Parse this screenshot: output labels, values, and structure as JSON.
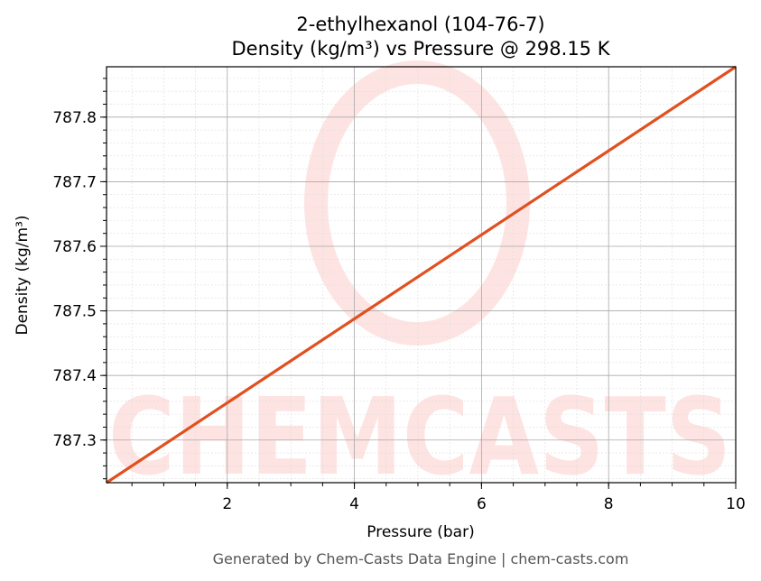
{
  "chart_data": {
    "type": "line",
    "title": "2-ethylhexanol (104-76-7)",
    "subtitle": "Density (kg/m³) vs Pressure @ 298.15 K",
    "xlabel": "Pressure (bar)",
    "ylabel": "Density (kg/m³)",
    "xlim": [
      0.1,
      10
    ],
    "ylim": [
      787.234,
      787.878
    ],
    "xticks": [
      2,
      4,
      6,
      8,
      10
    ],
    "xtick_labels": [
      "2",
      "4",
      "6",
      "8",
      "10"
    ],
    "yticks": [
      787.3,
      787.4,
      787.5,
      787.6,
      787.7,
      787.8
    ],
    "ytick_labels": [
      "787.3",
      "787.4",
      "787.5",
      "787.6",
      "787.7",
      "787.8"
    ],
    "grid": true,
    "series": [
      {
        "x": [
          0.1,
          10
        ],
        "y": [
          787.234,
          787.878
        ],
        "color": "#e05020"
      }
    ],
    "watermark": "CHEMCASTS",
    "footer": "Generated by Chem-Casts Data Engine | chem-casts.com"
  }
}
